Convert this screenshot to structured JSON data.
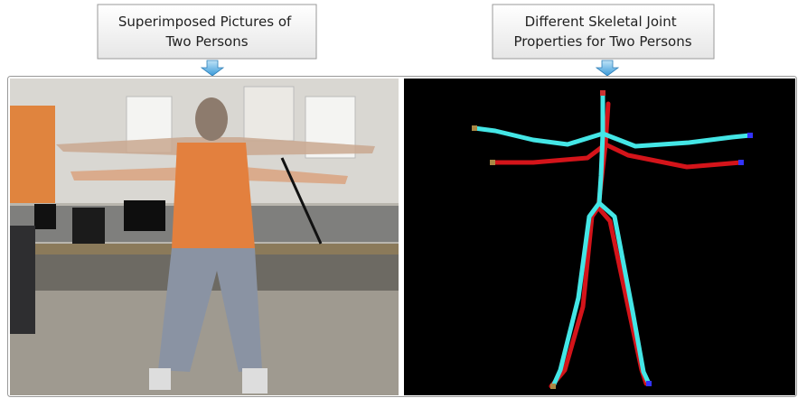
{
  "callouts": [
    {
      "lines": [
        "Superimposed Pictures of",
        "Two Persons"
      ]
    },
    {
      "lines": [
        "Different Skeletal Joint",
        "Properties for Two Persons"
      ]
    }
  ]
}
